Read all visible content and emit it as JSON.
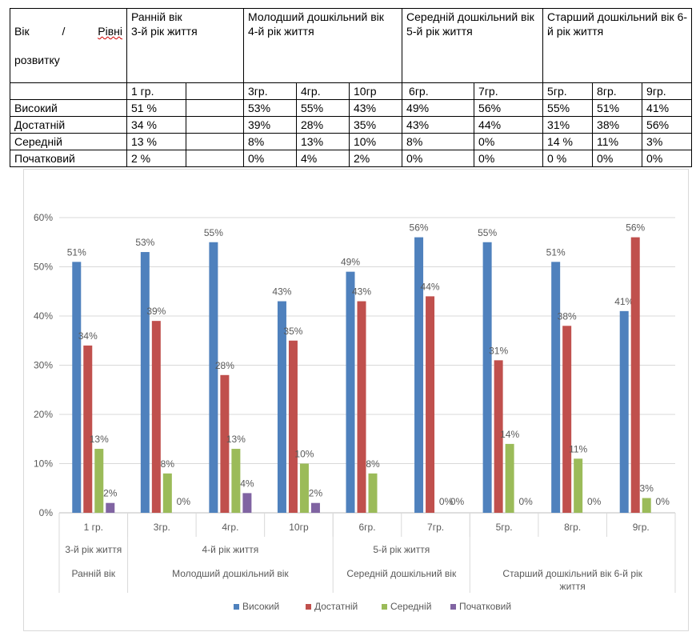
{
  "table": {
    "corner_line1_a": "Вік",
    "corner_line1_b": "/",
    "corner_line1_c": "Рівні",
    "corner_line2": "розвитку",
    "age_groups": [
      {
        "title": "Ранній вік\n3-й рік життя",
        "groups": [
          "1 гр.",
          ""
        ]
      },
      {
        "title": "Молодший дошкільний вік\n4-й рік життя",
        "groups": [
          "3гр.",
          "4гр.",
          "10гр"
        ]
      },
      {
        "title": "Середній дошкільний вік\n5-й рік життя",
        "groups": [
          "6гр.",
          "7гр."
        ]
      },
      {
        "title": "Старший дошкільний вік 6-й рік життя",
        "groups": [
          "5гр.",
          "8гр.",
          "9гр."
        ]
      }
    ],
    "rows": [
      {
        "label": "Високий",
        "values": [
          "51 %",
          "",
          "53%",
          "55%",
          "43%",
          "49%",
          "56%",
          "55%",
          "51%",
          "41%"
        ]
      },
      {
        "label": "Достатній",
        "values": [
          "34 %",
          "",
          "39%",
          "28%",
          "35%",
          "43%",
          "44%",
          "31%",
          "38%",
          "56%"
        ]
      },
      {
        "label": "Середній",
        "values": [
          "13 %",
          "",
          "8%",
          "13%",
          "10%",
          "8%",
          "0%",
          "14 %",
          "11%",
          "3%"
        ]
      },
      {
        "label": "Початковий",
        "values": [
          "2 %",
          "",
          "0%",
          "4%",
          "2%",
          "0%",
          "0%",
          "0 %",
          "0%",
          "0%"
        ]
      }
    ]
  },
  "chart_data": {
    "type": "bar",
    "categories": [
      "1 гр.",
      "3гр.",
      "4гр.",
      "10гр",
      "6гр.",
      "7гр.",
      "5гр.",
      "8гр.",
      "9гр."
    ],
    "category_groups": [
      {
        "level2": "3-й рік життя",
        "level3": "Ранній вік",
        "count": 1
      },
      {
        "level2": "4-й рік життя",
        "level3": "Молодший дошкільний вік",
        "count": 3
      },
      {
        "level2": "5-й рік життя",
        "level3": "Середній дошкільний вік",
        "count": 2
      },
      {
        "level2": "",
        "level3": "Старший дошкільний  вік 6-й рік життя",
        "count": 3
      }
    ],
    "series": [
      {
        "name": "Високий",
        "color": "#4f81bd",
        "values": [
          51,
          53,
          55,
          43,
          49,
          56,
          55,
          51,
          41
        ],
        "labels": [
          "51%",
          "53%",
          "55%",
          "43%",
          "49%",
          "56%",
          "55%",
          "51%",
          "41%"
        ]
      },
      {
        "name": "Достатній",
        "color": "#c0504d",
        "values": [
          34,
          39,
          28,
          35,
          43,
          44,
          31,
          38,
          56
        ],
        "labels": [
          "34%",
          "39%",
          "28%",
          "35%",
          "43%",
          "44%",
          "31%",
          "38%",
          "56%"
        ]
      },
      {
        "name": "Середній",
        "color": "#9bbb59",
        "values": [
          13,
          8,
          13,
          10,
          8,
          0,
          14,
          11,
          3
        ],
        "labels": [
          "13%",
          "8%",
          "13%",
          "10%",
          "8%",
          "0%",
          "14%",
          "11%",
          "3%"
        ]
      },
      {
        "name": "Початковий",
        "color": "#8064a2",
        "values": [
          2,
          null,
          4,
          2,
          null,
          null,
          null,
          null,
          null
        ],
        "labels": [
          "2%",
          "0%",
          "4%",
          "2%",
          "",
          "0%",
          "0%",
          "0%",
          "0%"
        ]
      }
    ],
    "y_ticks": [
      "0%",
      "10%",
      "20%",
      "30%",
      "40%",
      "50%",
      "60%"
    ],
    "ylim": [
      0,
      60
    ],
    "grid": true,
    "legend_position": "bottom"
  }
}
